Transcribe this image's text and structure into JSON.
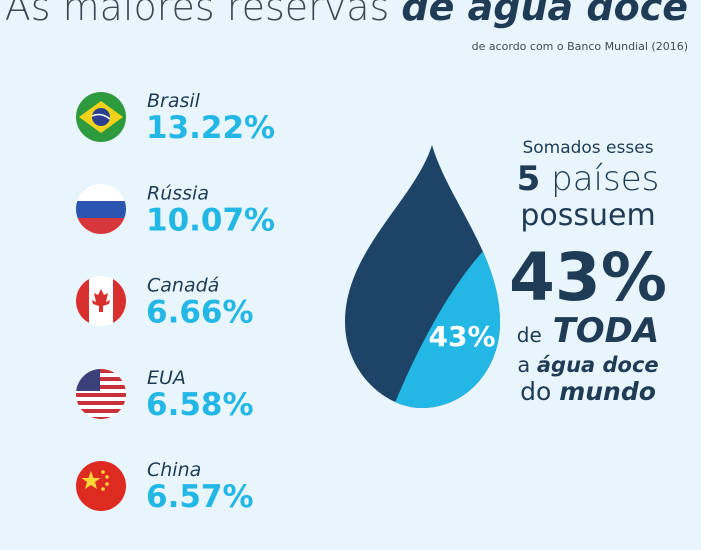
{
  "header": {
    "title_regular": "As maiores reservas",
    "title_bold": "de água doce",
    "subtitle": "de acordo com o Banco Mundial (2016)"
  },
  "countries": [
    {
      "name": "Brasil",
      "share": "13.22%"
    },
    {
      "name": "Rússia",
      "share": "10.07%"
    },
    {
      "name": "Canadá",
      "share": "6.66%"
    },
    {
      "name": "EUA",
      "share": "6.58%"
    },
    {
      "name": "China",
      "share": "6.57%"
    }
  ],
  "drop": {
    "label": "43%"
  },
  "summary": {
    "line1": "Somados esses",
    "count": "5",
    "line2": "países",
    "line3": "possuem",
    "share": "43%",
    "line5_regular": "de",
    "line5_bold": "TODA",
    "line6_regular": "a",
    "line6_bold": "água doce",
    "line7_regular": "do",
    "line7_bold": "mundo"
  }
}
